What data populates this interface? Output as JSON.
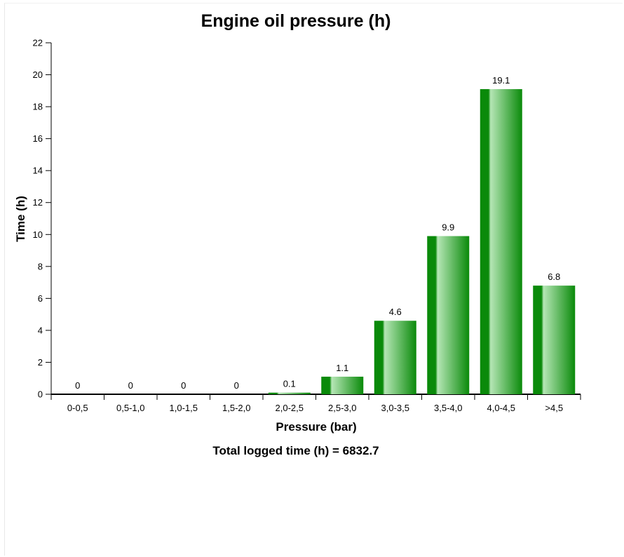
{
  "chart_data": {
    "type": "bar",
    "title": "Engine oil pressure (h)",
    "xlabel": "Pressure (bar)",
    "ylabel": "Time (h)",
    "categories": [
      "0-0,5",
      "0,5-1,0",
      "1,0-1,5",
      "1,5-2,0",
      "2,0-2,5",
      "2,5-3,0",
      "3,0-3,5",
      "3,5-4,0",
      "4,0-4,5",
      ">4,5"
    ],
    "values": [
      0,
      0,
      0,
      0,
      0.1,
      1.1,
      4.6,
      9.9,
      19.1,
      6.8
    ],
    "data_labels": [
      "0",
      "0",
      "0",
      "0",
      "0.1",
      "1.1",
      "4.6",
      "9.9",
      "19.1",
      "6.8"
    ],
    "ylim": [
      0,
      22
    ],
    "yticks": [
      0,
      2,
      4,
      6,
      8,
      10,
      12,
      14,
      16,
      18,
      20,
      22
    ],
    "grid": false,
    "legend": "none",
    "bar_color": "#0a8a0a",
    "bar_highlight_color": "#b5e6b5",
    "footnote": "Total logged time (h) = 6832.7"
  }
}
